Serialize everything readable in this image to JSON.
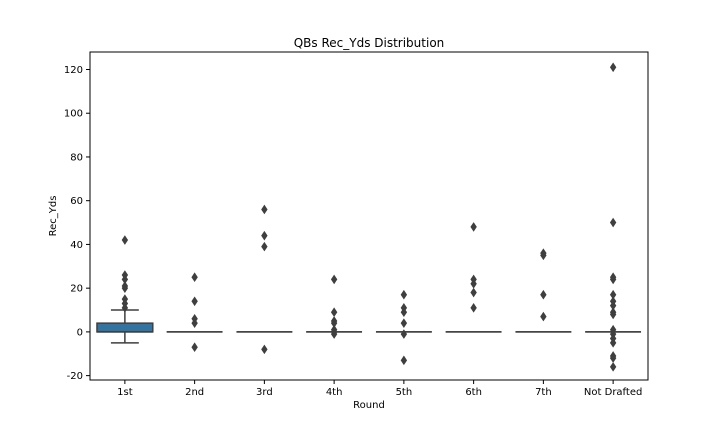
{
  "chart_data": {
    "type": "box",
    "title": "QBs Rec_Yds Distribution",
    "xlabel": "Round",
    "ylabel": "Rec_Yds",
    "ylim": [
      -22,
      128
    ],
    "yticks": [
      -20,
      0,
      20,
      40,
      60,
      80,
      100,
      120
    ],
    "grid": false,
    "colors": {
      "box_fill": "#3274a1",
      "line": "#3f3f3f",
      "outlier": "#3f3f3f"
    },
    "categories": [
      "1st",
      "2nd",
      "3rd",
      "4th",
      "5th",
      "6th",
      "7th",
      "Not Drafted"
    ],
    "boxes": [
      {
        "category": "1st",
        "q1": 0,
        "median": 0,
        "q3": 4,
        "whisker_low": -5,
        "whisker_high": 10,
        "outliers": [
          42,
          26,
          24,
          21,
          20,
          15,
          13,
          11
        ]
      },
      {
        "category": "2nd",
        "q1": 0,
        "median": 0,
        "q3": 0,
        "whisker_low": 0,
        "whisker_high": 0,
        "outliers": [
          25,
          14,
          6,
          4,
          -7
        ]
      },
      {
        "category": "3rd",
        "q1": 0,
        "median": 0,
        "q3": 0,
        "whisker_low": 0,
        "whisker_high": 0,
        "outliers": [
          56,
          44,
          39,
          -8
        ]
      },
      {
        "category": "4th",
        "q1": 0,
        "median": 0,
        "q3": 0,
        "whisker_low": 0,
        "whisker_high": 0,
        "outliers": [
          24,
          9,
          5,
          4,
          1,
          0,
          -1
        ]
      },
      {
        "category": "5th",
        "q1": 0,
        "median": 0,
        "q3": 0,
        "whisker_low": 0,
        "whisker_high": 0,
        "outliers": [
          17,
          11,
          9,
          4,
          -1,
          -13
        ]
      },
      {
        "category": "6th",
        "q1": 0,
        "median": 0,
        "q3": 0,
        "whisker_low": 0,
        "whisker_high": 0,
        "outliers": [
          48,
          24,
          22,
          18,
          11
        ]
      },
      {
        "category": "7th",
        "q1": 0,
        "median": 0,
        "q3": 0,
        "whisker_low": 0,
        "whisker_high": 0,
        "outliers": [
          36,
          35,
          17,
          7
        ]
      },
      {
        "category": "Not Drafted",
        "q1": 0,
        "median": 0,
        "q3": 0,
        "whisker_low": 0,
        "whisker_high": 0,
        "outliers": [
          121,
          50,
          25,
          24,
          17,
          14,
          12,
          9,
          8,
          1,
          -1,
          -3,
          -5,
          -11,
          -12,
          -16
        ]
      }
    ]
  }
}
